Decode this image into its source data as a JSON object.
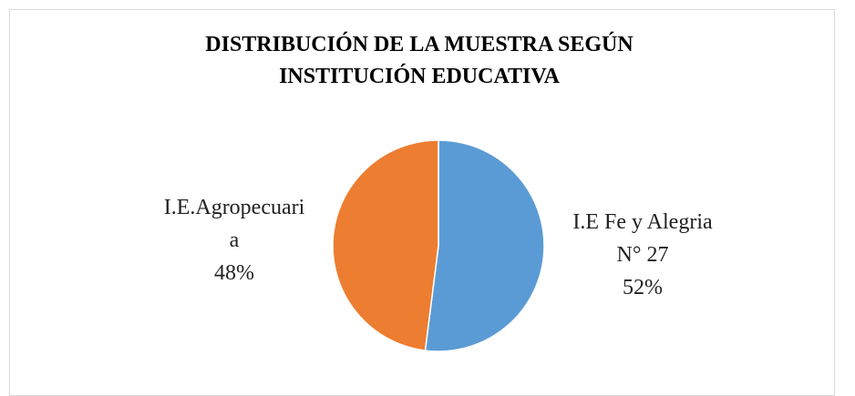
{
  "chart_data": {
    "type": "pie",
    "title": "DISTRIBUCIÓN DE LA MUESTRA SEGÚN INSTITUCIÓN EDUCATIVA",
    "categories": [
      "I.E Fe y Alegria N° 27",
      "I.E.Agropecuaria"
    ],
    "values": [
      52,
      48
    ],
    "value_labels": [
      "52%",
      "48%"
    ],
    "colors": [
      "#5b9bd5",
      "#ed7d31"
    ]
  }
}
